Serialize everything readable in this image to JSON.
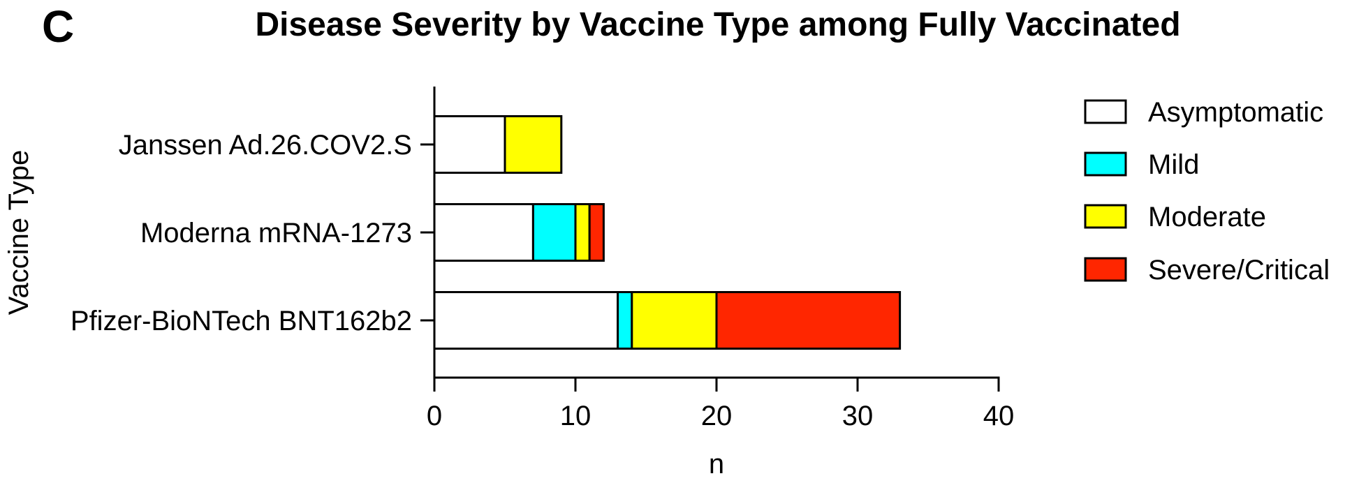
{
  "panel_label": "C",
  "chart_data": {
    "type": "bar",
    "orientation": "horizontal",
    "stacked": true,
    "title": "Disease Severity by Vaccine Type among Fully Vaccinated",
    "xlabel": "n",
    "ylabel": "Vaccine Type",
    "xlim": [
      0,
      40
    ],
    "xticks": [
      0,
      10,
      20,
      30,
      40
    ],
    "grid": false,
    "legend_position": "right",
    "categories": [
      "Janssen Ad.26.COV2.S",
      "Moderna mRNA-1273",
      "Pfizer-BioNTech BNT162b2"
    ],
    "series": [
      {
        "name": "Asymptomatic",
        "color": "#ffffff",
        "values": [
          5,
          7,
          13
        ]
      },
      {
        "name": "Mild",
        "color": "#00ffff",
        "values": [
          0,
          3,
          1
        ]
      },
      {
        "name": "Moderate",
        "color": "#ffff00",
        "values": [
          4,
          1,
          6
        ]
      },
      {
        "name": "Severe/Critical",
        "color": "#ff2600",
        "values": [
          0,
          1,
          13
        ]
      }
    ]
  }
}
